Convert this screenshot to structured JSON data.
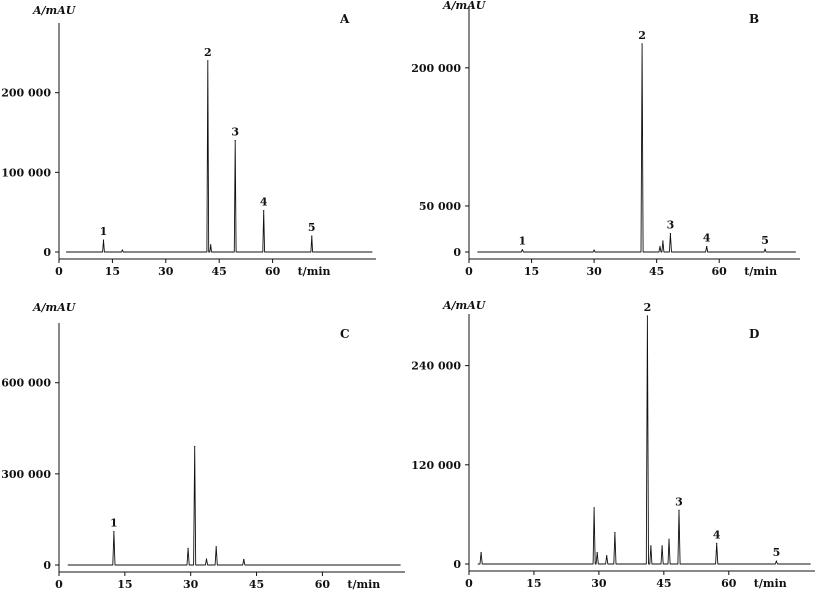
{
  "chart_data": [
    {
      "type": "line",
      "panel": "A",
      "ylabel": "A/mAU",
      "xlabel": "t/min",
      "x_ticks": [
        0,
        15,
        30,
        45,
        60
      ],
      "y_ticks": [
        0,
        100000,
        200000
      ],
      "y_tick_labels": [
        "0",
        "100 000",
        "200 000"
      ],
      "xlim": [
        0,
        72
      ],
      "ylim": [
        -10000,
        285000
      ],
      "peaks": [
        {
          "label": "1",
          "t": 12.5,
          "height": 15000
        },
        {
          "label": "",
          "t": 17.8,
          "height": 2500
        },
        {
          "label": "2",
          "t": 41.8,
          "height": 240000
        },
        {
          "label": "",
          "t": 42.6,
          "height": 9000
        },
        {
          "label": "3",
          "t": 49.5,
          "height": 140000
        },
        {
          "label": "4",
          "t": 57.5,
          "height": 52000
        },
        {
          "label": "5",
          "t": 71.0,
          "height": 20000
        }
      ]
    },
    {
      "type": "line",
      "panel": "B",
      "ylabel": "A/mAU",
      "xlabel": "t/min",
      "x_ticks": [
        0,
        15,
        30,
        45,
        60
      ],
      "y_ticks": [
        0,
        50000,
        200000
      ],
      "y_tick_labels": [
        "0",
        "50 000",
        "200 000"
      ],
      "xlim": [
        0,
        80
      ],
      "ylim": [
        -10000,
        265000
      ],
      "peaks": [
        {
          "label": "1",
          "t": 12.8,
          "height": 2500
        },
        {
          "label": "",
          "t": 30,
          "height": 2000
        },
        {
          "label": "2",
          "t": 41.5,
          "height": 226000
        },
        {
          "label": "",
          "t": 45.8,
          "height": 6000
        },
        {
          "label": "",
          "t": 46.5,
          "height": 12000
        },
        {
          "label": "3",
          "t": 48.3,
          "height": 20000
        },
        {
          "label": "4",
          "t": 57,
          "height": 6000
        },
        {
          "label": "5",
          "t": 71,
          "height": 3000
        }
      ]
    },
    {
      "type": "line",
      "panel": "C",
      "ylabel": "A/mAU",
      "xlabel": "t/min",
      "x_ticks": [
        0,
        15,
        30,
        45,
        60
      ],
      "y_ticks": [
        0,
        300000,
        600000
      ],
      "y_tick_labels": [
        "0",
        "300 000",
        "600 000"
      ],
      "xlim": [
        0,
        80
      ],
      "ylim": [
        -20000,
        790000
      ],
      "peaks": [
        {
          "label": "1",
          "t": 12.5,
          "height": 110000
        },
        {
          "label": "",
          "t": 29.4,
          "height": 55000
        },
        {
          "label": "",
          "t": 30.9,
          "height": 390000
        },
        {
          "label": "",
          "t": 33.6,
          "height": 20000
        },
        {
          "label": "",
          "t": 35.8,
          "height": 60000
        },
        {
          "label": "",
          "t": 42.1,
          "height": 18000
        }
      ]
    },
    {
      "type": "line",
      "panel": "D",
      "ylabel": "A/mAU",
      "xlabel": "t/min",
      "x_ticks": [
        0,
        15,
        30,
        45,
        60
      ],
      "y_ticks": [
        0,
        120000,
        240000
      ],
      "y_tick_labels": [
        "0",
        "120 000",
        "240 000"
      ],
      "xlim": [
        0,
        80
      ],
      "ylim": [
        -6000,
        300000
      ],
      "peaks": [
        {
          "label": "",
          "t": 2.8,
          "height": 14000
        },
        {
          "label": "",
          "t": 28.9,
          "height": 68000
        },
        {
          "label": "",
          "t": 29.6,
          "height": 14000
        },
        {
          "label": "",
          "t": 31.8,
          "height": 10000
        },
        {
          "label": "",
          "t": 33.7,
          "height": 38000
        },
        {
          "label": "2",
          "t": 41.2,
          "height": 300000
        },
        {
          "label": "",
          "t": 42.0,
          "height": 22000
        },
        {
          "label": "",
          "t": 44.6,
          "height": 22000
        },
        {
          "label": "",
          "t": 46.2,
          "height": 30000
        },
        {
          "label": "3",
          "t": 48.5,
          "height": 65000
        },
        {
          "label": "4",
          "t": 57.2,
          "height": 25000
        },
        {
          "label": "5",
          "t": 71.0,
          "height": 3500
        }
      ]
    }
  ]
}
